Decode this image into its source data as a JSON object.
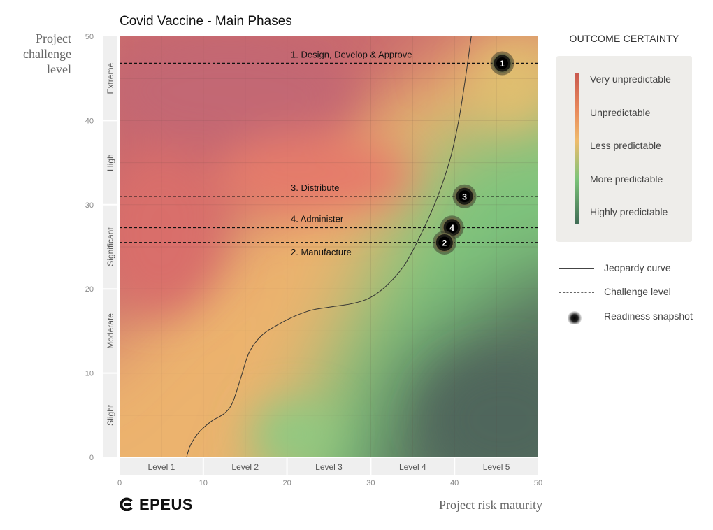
{
  "chart_data": {
    "type": "scatter",
    "title": "Covid Vaccine - Main Phases",
    "xlabel": "Project risk maturity",
    "ylabel": "Project challenge level",
    "xlim": [
      0,
      50
    ],
    "ylim": [
      0,
      50
    ],
    "x_ticks": [
      0,
      10,
      20,
      30,
      40,
      50
    ],
    "y_ticks": [
      0,
      10,
      20,
      30,
      40,
      50
    ],
    "x_bands": [
      {
        "label": "Level 1",
        "from": 0,
        "to": 10
      },
      {
        "label": "Level 2",
        "from": 10,
        "to": 20
      },
      {
        "label": "Level 3",
        "from": 20,
        "to": 30
      },
      {
        "label": "Level 4",
        "from": 30,
        "to": 40
      },
      {
        "label": "Level 5",
        "from": 40,
        "to": 50
      }
    ],
    "y_bands": [
      {
        "label": "Slight",
        "from": 0,
        "to": 10
      },
      {
        "label": "Moderate",
        "from": 10,
        "to": 20
      },
      {
        "label": "Significant",
        "from": 20,
        "to": 30
      },
      {
        "label": "High",
        "from": 30,
        "to": 40
      },
      {
        "label": "Extreme",
        "from": 40,
        "to": 50
      }
    ],
    "jeopardy_curve": [
      [
        8,
        0
      ],
      [
        8.5,
        1.5
      ],
      [
        9.5,
        3
      ],
      [
        11,
        4.3
      ],
      [
        12.5,
        5.2
      ],
      [
        13.5,
        6.5
      ],
      [
        14.5,
        9.5
      ],
      [
        15.5,
        12.5
      ],
      [
        17,
        14.5
      ],
      [
        19,
        15.8
      ],
      [
        21,
        16.8
      ],
      [
        23,
        17.5
      ],
      [
        25.5,
        17.9
      ],
      [
        28,
        18.3
      ],
      [
        30,
        19
      ],
      [
        32,
        20.5
      ],
      [
        34,
        22.8
      ],
      [
        36,
        26.5
      ],
      [
        38,
        31
      ],
      [
        39.5,
        35.5
      ],
      [
        40.5,
        40
      ],
      [
        41.3,
        45
      ],
      [
        42,
        50
      ]
    ],
    "challenge_lines": [
      {
        "label": "1. Design, Develop & Approve",
        "y": 46.8,
        "label_pos": "above"
      },
      {
        "label": "3. Distribute",
        "y": 31.0,
        "label_pos": "above"
      },
      {
        "label": "4. Administer",
        "y": 27.3,
        "label_pos": "above"
      },
      {
        "label": "2. Manufacture",
        "y": 25.5,
        "label_pos": "below"
      }
    ],
    "snapshots": [
      {
        "id": "1",
        "x": 45.7,
        "y": 46.8
      },
      {
        "id": "3",
        "x": 41.2,
        "y": 31.0
      },
      {
        "id": "4",
        "x": 39.7,
        "y": 27.3
      },
      {
        "id": "2",
        "x": 38.8,
        "y": 25.5
      }
    ],
    "heatmap_colors": {
      "very_unpredictable": "#c9676a",
      "unpredictable": "#e8826c",
      "less_predictable": "#eec072",
      "more_predictable": "#7ec67b",
      "highly_predictable": "#4e6b5e"
    },
    "grid": true,
    "legend": {
      "title": "OUTCOME CERTAINTY",
      "placement": "right",
      "categories": [
        "Very unpredictable",
        "Unpredictable",
        "Less predictable",
        "More predictable",
        "Highly predictable"
      ],
      "keys": [
        "Jeopardy curve",
        "Challenge level",
        "Readiness snapshot"
      ]
    }
  },
  "brand": {
    "name": "EPEUS"
  }
}
